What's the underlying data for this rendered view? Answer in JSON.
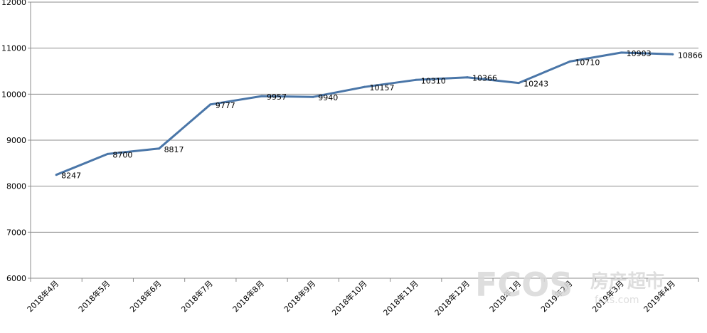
{
  "chart_data": {
    "type": "line",
    "categories": [
      "2018年4月",
      "2018年5月",
      "2018年6月",
      "2018年7月",
      "2018年8月",
      "2018年9月",
      "2018年10月",
      "2018年11月",
      "2018年12月",
      "2019年1月",
      "2019年2月",
      "2019年3月",
      "2019年4月"
    ],
    "series": [
      {
        "values": [
          8247,
          8700,
          8817,
          9777,
          9957,
          9940,
          10157,
          10310,
          10366,
          10243,
          10710,
          10903,
          10866
        ]
      }
    ],
    "y_ticks": [
      "6000",
      "7000",
      "8000",
      "9000",
      "10000",
      "11000",
      "12000"
    ],
    "ylim": [
      6000,
      12000
    ],
    "grid": true,
    "data_labels": true,
    "line_color": "#4a76a8",
    "title": "",
    "xlabel": "",
    "ylabel": ""
  },
  "watermark": {
    "logo_text": "FCOS",
    "cn_text": "房产超市",
    "url_text": "fcxs.com",
    "color": "#d9d9d9"
  }
}
